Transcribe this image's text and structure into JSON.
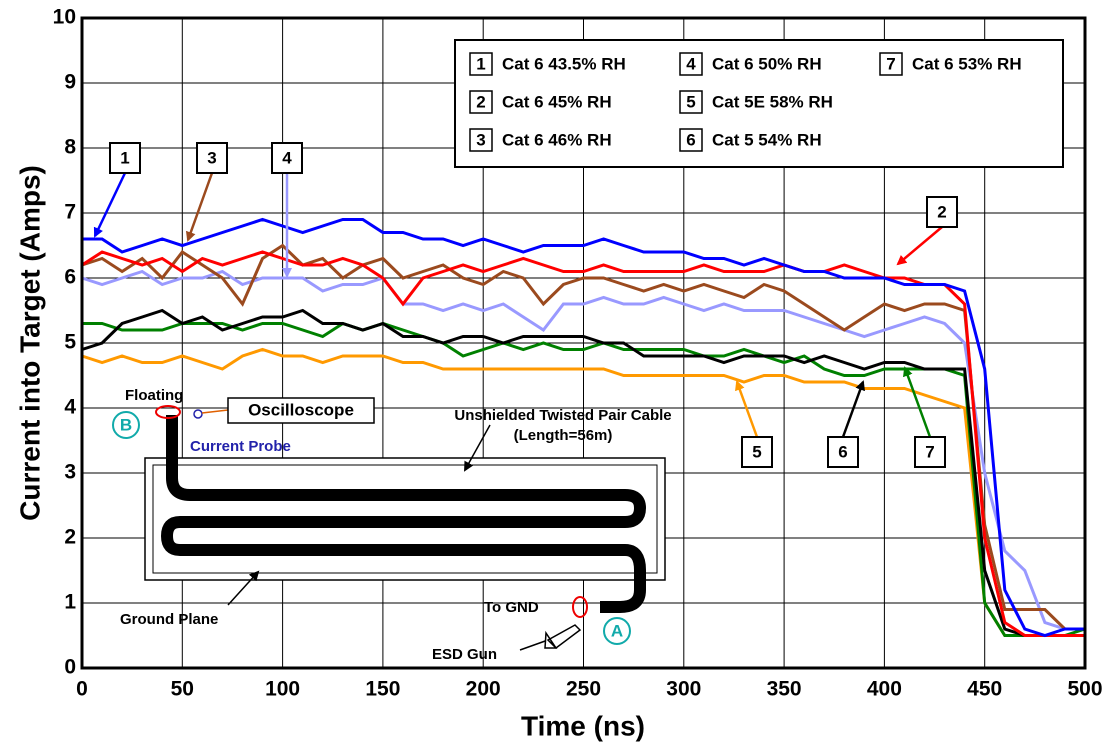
{
  "chart_data": {
    "type": "line",
    "xlabel": "Time (ns)",
    "ylabel": "Current into Target (Amps)",
    "xlim": [
      0,
      500
    ],
    "ylim": [
      0,
      10
    ],
    "xticks": [
      0,
      50,
      100,
      150,
      200,
      250,
      300,
      350,
      400,
      450,
      500
    ],
    "yticks": [
      0,
      1,
      2,
      3,
      4,
      5,
      6,
      7,
      8,
      9,
      10
    ],
    "grid": true,
    "legend": "upper right",
    "x": [
      0,
      10,
      20,
      30,
      40,
      50,
      60,
      70,
      80,
      90,
      100,
      110,
      120,
      130,
      140,
      150,
      160,
      170,
      180,
      190,
      200,
      210,
      220,
      230,
      240,
      250,
      260,
      270,
      280,
      290,
      300,
      310,
      320,
      330,
      340,
      350,
      360,
      370,
      380,
      390,
      400,
      410,
      420,
      430,
      440,
      450,
      460,
      470,
      480,
      490,
      500
    ],
    "series": [
      {
        "key": "1",
        "name": "Cat 6 43.5% RH",
        "color": "#0000ff",
        "values": [
          6.6,
          6.6,
          6.4,
          6.5,
          6.6,
          6.5,
          6.6,
          6.7,
          6.8,
          6.9,
          6.8,
          6.7,
          6.8,
          6.9,
          6.9,
          6.7,
          6.7,
          6.6,
          6.6,
          6.5,
          6.6,
          6.5,
          6.4,
          6.5,
          6.5,
          6.5,
          6.6,
          6.5,
          6.4,
          6.4,
          6.4,
          6.3,
          6.3,
          6.2,
          6.3,
          6.2,
          6.1,
          6.1,
          6.0,
          6.0,
          6.0,
          5.9,
          5.9,
          5.9,
          5.8,
          4.6,
          1.2,
          0.6,
          0.5,
          0.6,
          0.6
        ]
      },
      {
        "key": "2",
        "name": "Cat 6 45% RH",
        "color": "#ff0000",
        "values": [
          6.2,
          6.4,
          6.3,
          6.2,
          6.3,
          6.1,
          6.3,
          6.2,
          6.3,
          6.4,
          6.3,
          6.2,
          6.2,
          6.3,
          6.2,
          6.0,
          5.6,
          6.0,
          6.1,
          6.2,
          6.1,
          6.2,
          6.3,
          6.2,
          6.1,
          6.1,
          6.2,
          6.1,
          6.1,
          6.1,
          6.1,
          6.2,
          6.1,
          6.1,
          6.1,
          6.2,
          6.1,
          6.1,
          6.2,
          6.1,
          6.0,
          6.0,
          5.9,
          5.9,
          5.6,
          2.0,
          0.7,
          0.5,
          0.5,
          0.5,
          0.5
        ]
      },
      {
        "key": "3",
        "name": "Cat 6 46% RH",
        "color": "#9b4a1e",
        "values": [
          6.2,
          6.3,
          6.1,
          6.3,
          6.0,
          6.4,
          6.2,
          6.0,
          5.6,
          6.3,
          6.5,
          6.2,
          6.3,
          6.0,
          6.2,
          6.3,
          6.0,
          6.1,
          6.2,
          6.0,
          5.9,
          6.1,
          6.0,
          5.6,
          5.9,
          6.0,
          6.0,
          5.9,
          5.8,
          5.9,
          5.8,
          5.9,
          5.8,
          5.7,
          5.9,
          5.8,
          5.6,
          5.4,
          5.2,
          5.4,
          5.6,
          5.5,
          5.6,
          5.6,
          5.5,
          2.2,
          0.9,
          0.9,
          0.9,
          0.6,
          0.6
        ]
      },
      {
        "key": "4",
        "name": "Cat 6 50% RH",
        "color": "#9999ff",
        "values": [
          6.0,
          5.9,
          6.0,
          6.1,
          5.9,
          6.0,
          6.0,
          6.1,
          5.9,
          6.0,
          6.0,
          6.0,
          5.8,
          5.9,
          5.9,
          6.0,
          5.6,
          5.6,
          5.5,
          5.6,
          5.5,
          5.6,
          5.4,
          5.2,
          5.6,
          5.6,
          5.7,
          5.6,
          5.6,
          5.7,
          5.6,
          5.5,
          5.6,
          5.5,
          5.5,
          5.5,
          5.4,
          5.3,
          5.2,
          5.1,
          5.2,
          5.3,
          5.4,
          5.3,
          5.0,
          3.0,
          1.8,
          1.5,
          0.7,
          0.6,
          0.6
        ]
      },
      {
        "key": "5",
        "name": "Cat 5E 58% RH",
        "color": "#ff9900",
        "values": [
          4.8,
          4.7,
          4.8,
          4.7,
          4.7,
          4.8,
          4.7,
          4.6,
          4.8,
          4.9,
          4.8,
          4.8,
          4.7,
          4.8,
          4.8,
          4.8,
          4.7,
          4.7,
          4.6,
          4.6,
          4.6,
          4.6,
          4.6,
          4.6,
          4.6,
          4.6,
          4.6,
          4.5,
          4.5,
          4.5,
          4.5,
          4.5,
          4.5,
          4.4,
          4.5,
          4.5,
          4.4,
          4.4,
          4.4,
          4.3,
          4.3,
          4.3,
          4.2,
          4.1,
          4.0,
          1.0,
          0.5,
          0.5,
          0.5,
          0.5,
          0.5
        ]
      },
      {
        "key": "6",
        "name": "Cat 5 54% RH",
        "color": "#000000",
        "values": [
          4.9,
          5.0,
          5.3,
          5.4,
          5.5,
          5.3,
          5.4,
          5.2,
          5.3,
          5.4,
          5.4,
          5.5,
          5.3,
          5.3,
          5.2,
          5.3,
          5.1,
          5.1,
          5.0,
          5.1,
          5.1,
          5.0,
          5.1,
          5.1,
          5.1,
          5.1,
          5.0,
          5.0,
          4.8,
          4.8,
          4.8,
          4.8,
          4.7,
          4.8,
          4.8,
          4.8,
          4.7,
          4.8,
          4.7,
          4.6,
          4.7,
          4.7,
          4.6,
          4.6,
          4.6,
          1.5,
          0.6,
          0.5,
          0.5,
          0.5,
          0.5
        ]
      },
      {
        "key": "7",
        "name": "Cat 6 53% RH",
        "color": "#008000",
        "values": [
          5.3,
          5.3,
          5.2,
          5.2,
          5.2,
          5.3,
          5.3,
          5.3,
          5.2,
          5.3,
          5.3,
          5.2,
          5.1,
          5.3,
          5.2,
          5.3,
          5.2,
          5.1,
          5.0,
          4.8,
          4.9,
          5.0,
          4.9,
          5.0,
          4.9,
          4.9,
          5.0,
          4.9,
          4.9,
          4.9,
          4.9,
          4.8,
          4.8,
          4.9,
          4.8,
          4.7,
          4.8,
          4.6,
          4.5,
          4.5,
          4.6,
          4.6,
          4.6,
          4.6,
          4.5,
          1.0,
          0.5,
          0.5,
          0.5,
          0.5,
          0.6
        ]
      }
    ],
    "inset": {
      "floating": "Floating",
      "oscilloscope": "Oscilloscope",
      "current_probe": "Current Probe",
      "cable": "Unshielded Twisted Pair Cable",
      "cable_length": "(Length=56m)",
      "ground_plane": "Ground Plane",
      "to_gnd": "To GND",
      "esd_gun": "ESD Gun",
      "point_a": "A",
      "point_b": "B"
    }
  }
}
